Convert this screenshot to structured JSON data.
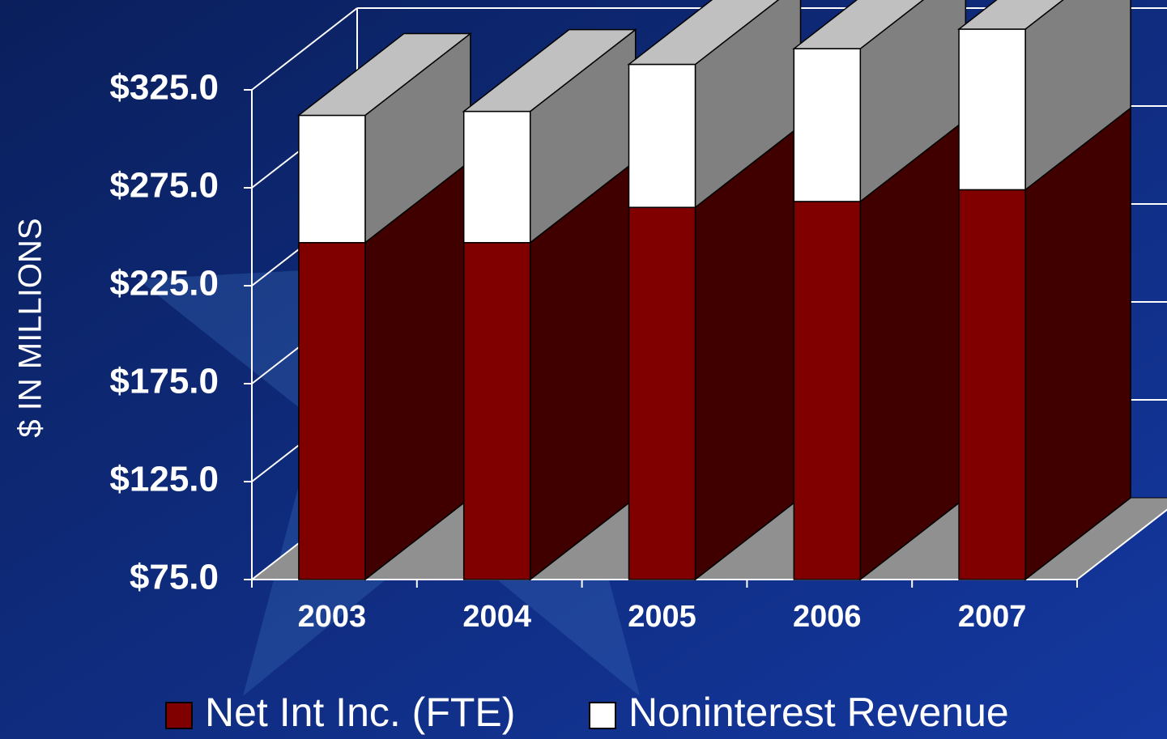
{
  "chart_data": {
    "type": "bar3d_stacked",
    "y_label": "$ IN MILLIONS",
    "categories": [
      "2003",
      "2004",
      "2005",
      "2006",
      "2007"
    ],
    "series": [
      {
        "name": "Net Int Inc. (FTE)",
        "color": "#800000",
        "side_color": "#400000",
        "values": [
          172,
          172,
          190,
          193,
          199
        ]
      },
      {
        "name": "Noninterest Revenue",
        "color": "#ffffff",
        "side_color": "#808080",
        "values": [
          65,
          67,
          73,
          78,
          82
        ]
      }
    ],
    "ylim": [
      75,
      325
    ],
    "yticks": [
      {
        "value": 75,
        "label": "$75.0"
      },
      {
        "value": 125,
        "label": "$125.0"
      },
      {
        "value": 175,
        "label": "$175.0"
      },
      {
        "value": 225,
        "label": "$225.0"
      },
      {
        "value": 275,
        "label": "$275.0"
      },
      {
        "value": 325,
        "label": "$325.0"
      }
    ],
    "grid": true,
    "legend": "bottom"
  }
}
